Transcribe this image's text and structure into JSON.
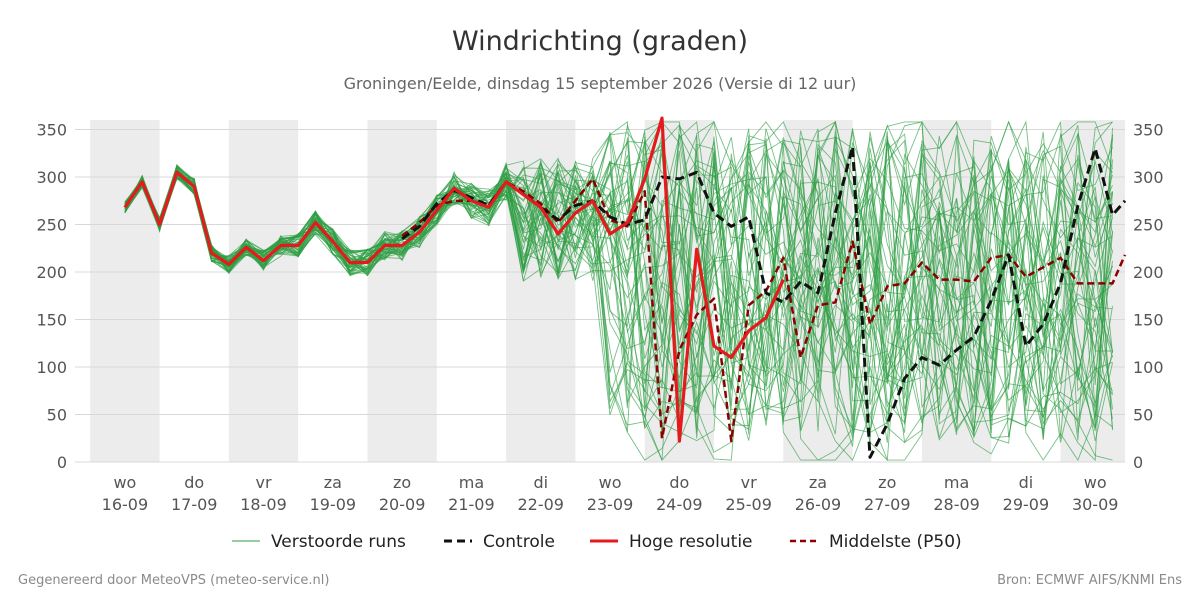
{
  "chart_data": {
    "type": "line",
    "title": "Windrichting (graden)",
    "subtitle": "Groningen/Eelde, dinsdag 15 september 2026 (Versie di 12 uur)",
    "footer_left": "Gegenereerd door MeteoVPS (meteo-service.nl)",
    "footer_right": "Bron: ECMWF AIFS/KNMI Ens",
    "ylim": [
      0,
      360
    ],
    "y_ticks": [
      0,
      50,
      100,
      150,
      200,
      250,
      300,
      350
    ],
    "xlim": [
      -0.72,
      14.43
    ],
    "x_ticks": [
      {
        "day": "wo",
        "date": "16-09"
      },
      {
        "day": "do",
        "date": "17-09"
      },
      {
        "day": "vr",
        "date": "18-09"
      },
      {
        "day": "za",
        "date": "19-09"
      },
      {
        "day": "zo",
        "date": "20-09"
      },
      {
        "day": "ma",
        "date": "21-09"
      },
      {
        "day": "di",
        "date": "22-09"
      },
      {
        "day": "wo",
        "date": "23-09"
      },
      {
        "day": "do",
        "date": "24-09"
      },
      {
        "day": "vr",
        "date": "25-09"
      },
      {
        "day": "za",
        "date": "26-09"
      },
      {
        "day": "zo",
        "date": "27-09"
      },
      {
        "day": "ma",
        "date": "28-09"
      },
      {
        "day": "di",
        "date": "29-09"
      },
      {
        "day": "wo",
        "date": "30-09"
      }
    ],
    "shaded_days": [
      0,
      2,
      4,
      6,
      8,
      10,
      12,
      14
    ],
    "grid": true,
    "legend_position": "bottom",
    "colors": {
      "ensemble": "#2e9e44",
      "control": "#111111",
      "hires": "#e41a1c",
      "median": "#8b0000",
      "shading": "#ececec",
      "grid": "#d8d8d8"
    },
    "ensemble_count": 50,
    "series": [
      {
        "name": "Hoge resolutie",
        "x": [
          0,
          0.25,
          0.5,
          0.75,
          1,
          1.25,
          1.5,
          1.75,
          2,
          2.25,
          2.5,
          2.75,
          3,
          3.25,
          3.5,
          3.75,
          4,
          4.25,
          4.5,
          4.75,
          5,
          5.25,
          5.5,
          6,
          6.25,
          6.5,
          6.75,
          7,
          7.25,
          7.5,
          7.75,
          8,
          8.25,
          8.5,
          8.75,
          9,
          9.25,
          9.5
        ],
        "values": [
          268,
          295,
          250,
          305,
          290,
          220,
          208,
          226,
          212,
          228,
          228,
          252,
          232,
          210,
          210,
          228,
          228,
          242,
          265,
          288,
          275,
          268,
          295,
          268,
          240,
          262,
          275,
          240,
          252,
          298,
          362,
          22,
          224,
          122,
          110,
          138,
          152,
          192
        ]
      },
      {
        "name": "Controle",
        "x": [
          4,
          4.25,
          4.5,
          4.75,
          5,
          5.25,
          5.5,
          5.75,
          6,
          6.25,
          6.5,
          6.75,
          7,
          7.25,
          7.5,
          7.75,
          8,
          8.25,
          8.5,
          8.75,
          9,
          9.25,
          9.5,
          9.75,
          10,
          10.25,
          10.5,
          10.75,
          11,
          11.25,
          11.5,
          11.75,
          12,
          12.25,
          12.5,
          12.75,
          13,
          13.25,
          13.5,
          13.75,
          14,
          14.25,
          14.43
        ],
        "values": [
          235,
          248,
          272,
          286,
          278,
          270,
          295,
          282,
          268,
          255,
          270,
          275,
          258,
          250,
          255,
          300,
          298,
          305,
          262,
          248,
          258,
          178,
          168,
          190,
          178,
          262,
          332,
          5,
          40,
          88,
          110,
          102,
          118,
          132,
          170,
          218,
          122,
          145,
          188,
          270,
          330,
          260,
          275
        ]
      },
      {
        "name": "Middelste (P50)",
        "x": [
          4,
          4.25,
          4.5,
          4.75,
          5,
          5.25,
          5.5,
          5.75,
          6,
          6.25,
          6.5,
          6.75,
          7,
          7.25,
          7.5,
          7.75,
          8,
          8.25,
          8.5,
          8.75,
          9,
          9.25,
          9.5,
          9.75,
          10,
          10.25,
          10.5,
          10.75,
          11,
          11.25,
          11.5,
          11.75,
          12,
          12.25,
          12.5,
          12.75,
          13,
          13.25,
          13.5,
          13.75,
          14,
          14.25,
          14.43
        ],
        "values": [
          238,
          252,
          270,
          275,
          275,
          270,
          295,
          285,
          272,
          252,
          275,
          298,
          255,
          248,
          285,
          25,
          118,
          155,
          172,
          22,
          165,
          180,
          215,
          110,
          165,
          168,
          232,
          145,
          185,
          188,
          210,
          192,
          192,
          190,
          215,
          218,
          195,
          205,
          215,
          188,
          188,
          188,
          218
        ]
      },
      {
        "name": "Verstoorde runs",
        "x": [],
        "values": []
      }
    ]
  }
}
